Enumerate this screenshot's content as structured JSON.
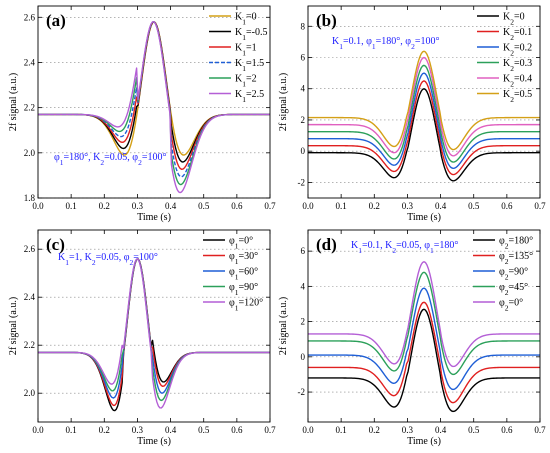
{
  "chart_data": [
    {
      "type": "line",
      "panel_label": "(a)",
      "xlabel": "Time (s)",
      "ylabel": "2f signal (a.u.)",
      "xlim": [
        0,
        0.7
      ],
      "ylim": [
        1.8,
        2.65
      ],
      "xticks": [
        0.0,
        0.1,
        0.2,
        0.3,
        0.4,
        0.5,
        0.6,
        0.7
      ],
      "yticks": [
        1.8,
        2.0,
        2.2,
        2.4,
        2.6
      ],
      "xtick_labels": [
        "0.0",
        "0.1",
        "0.2",
        "0.3",
        "0.4",
        "0.5",
        "0.6",
        "0.7"
      ],
      "ytick_labels": [
        "1.8",
        "2.0",
        "2.2",
        "2.4",
        "2.6"
      ],
      "grid": "dotted horizontal",
      "legend": "top-right",
      "annotation": "φ1=180°, K2=0.05, φ2=100°",
      "annotation_position": "lower-left",
      "curve_model": {
        "x0": 0.35,
        "width": 0.073,
        "base": [
          2.17,
          2.17,
          2.17,
          2.17,
          2.17,
          2.17
        ],
        "center": [
          2.58,
          2.58,
          2.58,
          2.58,
          2.58,
          2.58
        ],
        "left_min": [
          1.99,
          2.02,
          2.05,
          2.08,
          2.11,
          2.14
        ],
        "right_min": [
          1.99,
          1.96,
          1.93,
          1.9,
          1.87,
          1.84
        ]
      },
      "series": [
        {
          "name": "K1=0",
          "sym": "K",
          "sub": "1",
          "val": "=0",
          "color": "#d4a017"
        },
        {
          "name": "K1=-0.5",
          "sym": "K",
          "sub": "1",
          "val": "=-0.5",
          "color": "#000000"
        },
        {
          "name": "K1=1",
          "sym": "K",
          "sub": "1",
          "val": "=1",
          "color": "#e02020"
        },
        {
          "name": "K1=1.5",
          "sym": "K",
          "sub": "1",
          "val": "=1.5",
          "color": "#1f5fd6",
          "dashed": true
        },
        {
          "name": "K1=2",
          "sym": "K",
          "sub": "1",
          "val": "=2",
          "color": "#2ca05a"
        },
        {
          "name": "K1=2.5",
          "sym": "K",
          "sub": "1",
          "val": "=2.5",
          "color": "#b45fd6"
        }
      ]
    },
    {
      "type": "line",
      "panel_label": "(b)",
      "xlabel": "Time (s)",
      "ylabel": "2f signal (a.u.)",
      "xlim": [
        0,
        0.7
      ],
      "ylim": [
        -3,
        9.3
      ],
      "xticks": [
        0.0,
        0.1,
        0.2,
        0.3,
        0.4,
        0.5,
        0.6,
        0.7
      ],
      "yticks": [
        -2,
        0,
        2,
        4,
        6,
        8
      ],
      "xtick_labels": [
        "0.0",
        "0.1",
        "0.2",
        "0.3",
        "0.4",
        "0.5",
        "0.6",
        "0.7"
      ],
      "ytick_labels": [
        "-2",
        "0",
        "2",
        "4",
        "6",
        "8"
      ],
      "grid": "dotted horizontal",
      "legend": "top-right",
      "annotation": "K1=0.1, φ1=180°, φ2=100°",
      "annotation_position": "upper-left",
      "curve_model": {
        "x0": 0.35,
        "width": 0.073,
        "base": [
          -0.1,
          0.35,
          0.8,
          1.25,
          1.7,
          2.15
        ],
        "center": [
          4.0,
          4.5,
          5.0,
          5.5,
          6.0,
          6.4
        ],
        "left_min": [
          -1.7,
          -1.3,
          -0.9,
          -0.5,
          -0.1,
          0.3
        ],
        "right_min": [
          -1.9,
          -1.5,
          -1.1,
          -0.7,
          -0.3,
          0.1
        ]
      },
      "series": [
        {
          "name": "K2=0",
          "sym": "K",
          "sub": "2",
          "val": "=0",
          "color": "#000000"
        },
        {
          "name": "K2=0.1",
          "sym": "K",
          "sub": "2",
          "val": "=0.1",
          "color": "#e02020"
        },
        {
          "name": "K2=0.2",
          "sym": "K",
          "sub": "2",
          "val": "=0.2",
          "color": "#1f5fd6"
        },
        {
          "name": "K2=0.3",
          "sym": "K",
          "sub": "2",
          "val": "=0.3",
          "color": "#2ca05a"
        },
        {
          "name": "K2=0.4",
          "sym": "K",
          "sub": "2",
          "val": "=0.4",
          "color": "#e060c0"
        },
        {
          "name": "K2=0.5",
          "sym": "K",
          "sub": "2",
          "val": "=0.5",
          "color": "#d4a017"
        }
      ]
    },
    {
      "type": "line",
      "panel_label": "(c)",
      "xlabel": "Time (s)",
      "ylabel": "2f signal (a.u.)",
      "xlim": [
        0,
        0.7
      ],
      "ylim": [
        1.88,
        2.68
      ],
      "xticks": [
        0.0,
        0.1,
        0.2,
        0.3,
        0.4,
        0.5,
        0.6,
        0.7
      ],
      "yticks": [
        2.0,
        2.2,
        2.4,
        2.6
      ],
      "xtick_labels": [
        "0.0",
        "0.1",
        "0.2",
        "0.3",
        "0.4",
        "0.5",
        "0.6",
        "0.7"
      ],
      "ytick_labels": [
        "2.0",
        "2.2",
        "2.4",
        "2.6"
      ],
      "grid": "dotted horizontal",
      "legend": "top-right",
      "annotation": "K1=1, K2=0.05, φ2=100°",
      "annotation_position": "upper-left",
      "curve_model": {
        "x0": 0.3,
        "width": 0.06,
        "base": [
          2.17,
          2.17,
          2.17,
          2.17,
          2.17
        ],
        "center": [
          2.56,
          2.56,
          2.56,
          2.56,
          2.56
        ],
        "left_min": [
          1.93,
          1.95,
          1.98,
          2.01,
          2.04
        ],
        "right_min": [
          2.05,
          2.03,
          2.0,
          1.97,
          1.94
        ]
      },
      "series": [
        {
          "name": "φ1=0°",
          "sym": "φ",
          "sub": "1",
          "val": "=0°",
          "color": "#000000"
        },
        {
          "name": "φ1=30°",
          "sym": "φ",
          "sub": "1",
          "val": "=30°",
          "color": "#e02020"
        },
        {
          "name": "φ1=60°",
          "sym": "φ",
          "sub": "1",
          "val": "=60°",
          "color": "#1f5fd6"
        },
        {
          "name": "φ1=90°",
          "sym": "φ",
          "sub": "1",
          "val": "=90°",
          "color": "#2ca05a"
        },
        {
          "name": "φ1=120°",
          "sym": "φ",
          "sub": "1",
          "val": "=120°",
          "color": "#b45fd6"
        }
      ]
    },
    {
      "type": "line",
      "panel_label": "(d)",
      "xlabel": "Time (s)",
      "ylabel": "2f signal (a.u.)",
      "xlim": [
        0,
        0.7
      ],
      "ylim": [
        -3.7,
        7.2
      ],
      "xticks": [
        0.0,
        0.1,
        0.2,
        0.3,
        0.4,
        0.5,
        0.6,
        0.7
      ],
      "yticks": [
        -2,
        0,
        2,
        4,
        6
      ],
      "xtick_labels": [
        "0.0",
        "0.1",
        "0.2",
        "0.3",
        "0.4",
        "0.5",
        "0.6",
        "0.7"
      ],
      "ytick_labels": [
        "-2",
        "0",
        "2",
        "4",
        "6"
      ],
      "grid": "dotted horizontal",
      "legend": "top-right",
      "annotation": "K1=0.1, K2=0.05, φ1=180°",
      "annotation_position": "upper-left",
      "curve_model": {
        "x0": 0.35,
        "width": 0.073,
        "base": [
          -1.2,
          -0.6,
          0.1,
          0.9,
          1.3
        ],
        "center": [
          2.7,
          3.1,
          3.9,
          4.8,
          5.4
        ],
        "left_min": [
          -2.85,
          -2.2,
          -1.5,
          -0.8,
          -0.4
        ],
        "right_min": [
          -3.1,
          -2.6,
          -1.85,
          -1.0,
          -0.55
        ]
      },
      "series": [
        {
          "name": "φ2=180°",
          "sym": "φ",
          "sub": "2",
          "val": "=180°",
          "color": "#000000"
        },
        {
          "name": "φ2=135°",
          "sym": "φ",
          "sub": "2",
          "val": "=135°",
          "color": "#e02020"
        },
        {
          "name": "φ2=90°",
          "sym": "φ",
          "sub": "2",
          "val": "=90°",
          "color": "#1f5fd6"
        },
        {
          "name": "φ2=45°",
          "sym": "φ",
          "sub": "2",
          "val": "=45°",
          "color": "#2ca05a"
        },
        {
          "name": "φ2=0°",
          "sym": "φ",
          "sub": "2",
          "val": "=0°",
          "color": "#b45fd6"
        }
      ]
    }
  ]
}
